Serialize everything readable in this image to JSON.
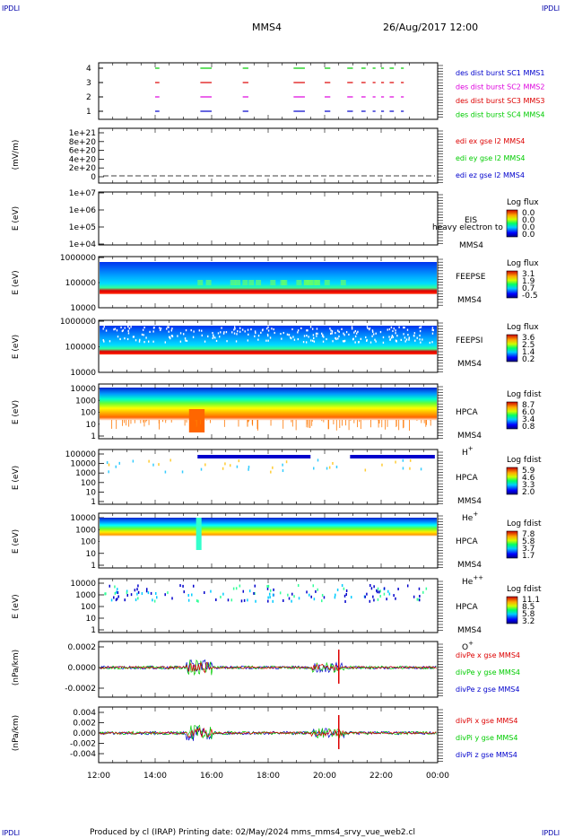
{
  "header": {
    "corner_left_top": "IPDLI",
    "corner_right_top": "IPDLI",
    "corner_left_bottom": "IPDLI",
    "corner_right_bottom": "IPDLI",
    "spacecraft": "MMS4",
    "datetime": "26/Aug/2017 12:00"
  },
  "footer": {
    "text": "Produced by cl (IRAP)   Printing date: 02/May/2024   mms_mms4_srvy_vue_web2.cl"
  },
  "colors": {
    "c1": "#0000cc",
    "c2": "#dd00dd",
    "c3": "#dd0000",
    "c4": "#00cc00",
    "ex": "#dd0000",
    "ey": "#00cc00",
    "ez": "#0000cc"
  },
  "chart_data": {
    "type": "multi-panel",
    "x_ticks": [
      "12:00",
      "14:00",
      "16:00",
      "18:00",
      "20:00",
      "22:00",
      "00:00"
    ],
    "x_range_hours": [
      12,
      24
    ],
    "panels": [
      {
        "id": "burst",
        "ytitle": "",
        "yticks": [
          "4",
          "3",
          "2",
          "1"
        ],
        "legend": [
          "des dist burst SC1 MMS1",
          "des dist burst SC2 MMS2",
          "des dist burst SC3 MMS3",
          "des dist burst SC4 MMS4"
        ],
        "burst_intervals_hours": [
          [
            14.0,
            14.15
          ],
          [
            15.6,
            16.0
          ],
          [
            17.1,
            17.3
          ],
          [
            18.9,
            19.3
          ],
          [
            20.0,
            20.2
          ],
          [
            20.8,
            21.0
          ],
          [
            21.3,
            21.45
          ],
          [
            21.7,
            21.8
          ],
          [
            22.0,
            22.1
          ],
          [
            22.3,
            22.45
          ],
          [
            22.7,
            22.8
          ]
        ]
      },
      {
        "id": "edi",
        "ytitle": "(mV/m)",
        "yticks": [
          "1e+21",
          "8e+20",
          "6e+20",
          "4e+20",
          "2e+20",
          "0"
        ],
        "legend": [
          "edi ex gse l2 MMS4",
          "edi ey gse l2 MMS4",
          "edi ez gse l2 MMS4"
        ]
      },
      {
        "id": "eis",
        "ytitle": "E (eV)",
        "yticks": [
          "1e+07",
          "1e+06",
          "1e+05",
          "1e+04"
        ],
        "labels": [
          "EIS",
          "MMS4"
        ],
        "overlay": "heavy electron to",
        "cbar_title": "Log flux",
        "cbar_ticks": [
          "0.0",
          "0.0",
          "0.0",
          "0.0"
        ]
      },
      {
        "id": "feepse",
        "ytitle": "E (eV)",
        "yticks": [
          "1000000",
          "100000",
          "10000"
        ],
        "labels": [
          "FEEPSE",
          "MMS4"
        ],
        "cbar_title": "Log flux",
        "cbar_ticks": [
          "3.1",
          "1.9",
          "0.7",
          "-0.5"
        ]
      },
      {
        "id": "feepsi",
        "ytitle": "E (eV)",
        "yticks": [
          "1000000",
          "100000",
          "10000"
        ],
        "labels": [
          "FEEPSI",
          "MMS4"
        ],
        "cbar_title": "Log flux",
        "cbar_ticks": [
          "3.6",
          "2.5",
          "1.4",
          "0.2"
        ]
      },
      {
        "id": "hpca_h",
        "ytitle": "E (eV)",
        "yticks": [
          "10000",
          "1000",
          "100",
          "10",
          "1"
        ],
        "labels": [
          "HPCA",
          "MMS4"
        ],
        "species": "H",
        "species_sup": "+",
        "cbar_title": "Log fdist",
        "cbar_ticks": [
          "8.7",
          "6.0",
          "3.4",
          "0.8"
        ]
      },
      {
        "id": "hpca_he",
        "ytitle": "E (eV)",
        "yticks": [
          "100000",
          "10000",
          "1000",
          "100",
          "10",
          "1"
        ],
        "labels": [
          "HPCA",
          "MMS4"
        ],
        "species": "He",
        "species_sup": "+",
        "cbar_title": "Log fdist",
        "cbar_ticks": [
          "5.9",
          "4.6",
          "3.3",
          "2.0"
        ]
      },
      {
        "id": "hpca_hepp",
        "ytitle": "E (eV)",
        "yticks": [
          "10000",
          "1000",
          "100",
          "10",
          "1"
        ],
        "labels": [
          "HPCA",
          "MMS4"
        ],
        "species": "He",
        "species_sup": "++",
        "cbar_title": "Log fdist",
        "cbar_ticks": [
          "7.8",
          "5.8",
          "3.7",
          "1.7"
        ]
      },
      {
        "id": "hpca_o",
        "ytitle": "E (eV)",
        "yticks": [
          "10000",
          "1000",
          "100",
          "10",
          "1"
        ],
        "labels": [
          "HPCA",
          "MMS4"
        ],
        "species": "O",
        "species_sup": "+",
        "cbar_title": "Log fdist",
        "cbar_ticks": [
          "11.1",
          "8.5",
          "5.8",
          "3.2"
        ]
      },
      {
        "id": "divpe",
        "ytitle": "(nPa/km)",
        "yticks": [
          "0.0002",
          "0.0000",
          "-0.0002"
        ],
        "legend": [
          "divPe x gse MMS4",
          "divPe y gse MMS4",
          "divPe z gse MMS4"
        ]
      },
      {
        "id": "divpi",
        "ytitle": "(nPa/km)",
        "yticks": [
          "0.004",
          "0.002",
          "0.000",
          "-0.002",
          "-0.004"
        ],
        "legend": [
          "divPi x gse MMS4",
          "divPi y gse MMS4",
          "divPi z gse MMS4"
        ]
      }
    ]
  }
}
